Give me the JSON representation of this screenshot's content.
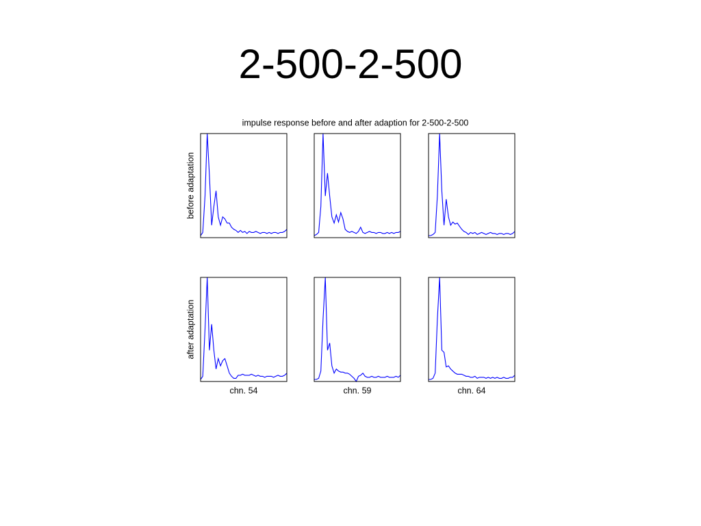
{
  "slide_title": "2-500-2-500",
  "figure_title": "impulse response before and after adaption for 2-500-2-500",
  "row_labels": [
    "before adaptation",
    "after adaptation"
  ],
  "column_labels": [
    "chn. 54",
    "chn. 59",
    "chn. 64"
  ],
  "chart_data": [
    {
      "type": "line",
      "color": "#0000ff",
      "ylim": [
        0,
        1
      ],
      "values": [
        0.02,
        0.05,
        0.4,
        1.0,
        0.6,
        0.12,
        0.3,
        0.45,
        0.2,
        0.12,
        0.2,
        0.18,
        0.14,
        0.14,
        0.1,
        0.08,
        0.07,
        0.05,
        0.07,
        0.05,
        0.06,
        0.04,
        0.06,
        0.05,
        0.05,
        0.06,
        0.05,
        0.04,
        0.05,
        0.05,
        0.04,
        0.05,
        0.04,
        0.05,
        0.05,
        0.04,
        0.05,
        0.05,
        0.06,
        0.08
      ]
    },
    {
      "type": "line",
      "color": "#0000ff",
      "ylim": [
        0,
        1
      ],
      "values": [
        0.02,
        0.03,
        0.05,
        0.3,
        1.0,
        0.4,
        0.62,
        0.4,
        0.2,
        0.14,
        0.22,
        0.15,
        0.24,
        0.18,
        0.08,
        0.06,
        0.05,
        0.06,
        0.05,
        0.04,
        0.06,
        0.1,
        0.05,
        0.04,
        0.05,
        0.06,
        0.05,
        0.05,
        0.04,
        0.05,
        0.05,
        0.04,
        0.04,
        0.05,
        0.04,
        0.05,
        0.04,
        0.05,
        0.05,
        0.06
      ]
    },
    {
      "type": "line",
      "color": "#0000ff",
      "ylim": [
        0,
        1
      ],
      "values": [
        0.02,
        0.02,
        0.03,
        0.05,
        0.4,
        1.0,
        0.45,
        0.12,
        0.37,
        0.2,
        0.12,
        0.15,
        0.13,
        0.14,
        0.11,
        0.08,
        0.06,
        0.05,
        0.03,
        0.05,
        0.04,
        0.05,
        0.03,
        0.04,
        0.05,
        0.04,
        0.03,
        0.04,
        0.05,
        0.04,
        0.04,
        0.03,
        0.04,
        0.04,
        0.03,
        0.04,
        0.04,
        0.03,
        0.04,
        0.06
      ]
    },
    {
      "type": "line",
      "color": "#0000ff",
      "ylim": [
        0,
        1
      ],
      "values": [
        0.02,
        0.05,
        0.5,
        1.0,
        0.3,
        0.55,
        0.3,
        0.12,
        0.22,
        0.15,
        0.2,
        0.22,
        0.15,
        0.08,
        0.05,
        0.03,
        0.03,
        0.06,
        0.06,
        0.07,
        0.06,
        0.06,
        0.06,
        0.07,
        0.06,
        0.05,
        0.06,
        0.05,
        0.05,
        0.04,
        0.05,
        0.05,
        0.05,
        0.04,
        0.05,
        0.06,
        0.05,
        0.05,
        0.06,
        0.08
      ]
    },
    {
      "type": "line",
      "color": "#0000ff",
      "ylim": [
        0,
        1
      ],
      "values": [
        0.02,
        0.02,
        0.03,
        0.1,
        0.6,
        1.0,
        0.3,
        0.37,
        0.15,
        0.08,
        0.12,
        0.1,
        0.09,
        0.09,
        0.08,
        0.08,
        0.07,
        0.05,
        0.03,
        0.0,
        0.05,
        0.06,
        0.08,
        0.05,
        0.04,
        0.04,
        0.05,
        0.04,
        0.04,
        0.05,
        0.04,
        0.04,
        0.04,
        0.05,
        0.04,
        0.04,
        0.04,
        0.05,
        0.04,
        0.06
      ]
    },
    {
      "type": "line",
      "color": "#0000ff",
      "ylim": [
        0,
        1
      ],
      "values": [
        0.02,
        0.02,
        0.03,
        0.08,
        0.6,
        1.0,
        0.3,
        0.28,
        0.14,
        0.15,
        0.12,
        0.1,
        0.08,
        0.07,
        0.07,
        0.07,
        0.06,
        0.05,
        0.05,
        0.04,
        0.04,
        0.05,
        0.03,
        0.04,
        0.04,
        0.04,
        0.03,
        0.04,
        0.03,
        0.04,
        0.03,
        0.04,
        0.03,
        0.03,
        0.04,
        0.03,
        0.03,
        0.04,
        0.04,
        0.06
      ]
    }
  ]
}
